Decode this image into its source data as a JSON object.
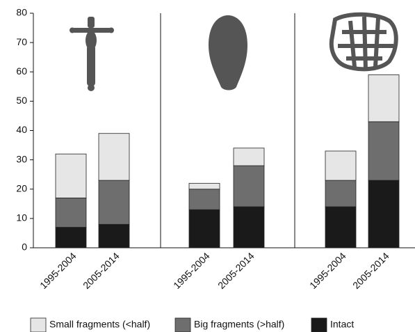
{
  "chart_data": {
    "type": "stacked_bar",
    "categories": [
      "1995-2004",
      "2005-2014",
      "1995-2004",
      "2005-2014",
      "1995-2004",
      "2005-2014"
    ],
    "series": [
      {
        "name": "Small fragments (<half)",
        "color": "#e6e6e6",
        "values": [
          15,
          16,
          2,
          6,
          10,
          16
        ]
      },
      {
        "name": "Big fragments (>half)",
        "color": "#6e6e6e",
        "values": [
          10,
          15,
          7,
          14,
          9,
          20
        ]
      },
      {
        "name": "Intact",
        "color": "#1a1a1a",
        "values": [
          7,
          8,
          13,
          14,
          14,
          23
        ]
      }
    ],
    "ylim": [
      0,
      80
    ],
    "yticks": [
      0,
      10,
      20,
      30,
      40,
      50,
      60,
      70,
      80
    ],
    "grid": false,
    "legend": "bottom"
  }
}
